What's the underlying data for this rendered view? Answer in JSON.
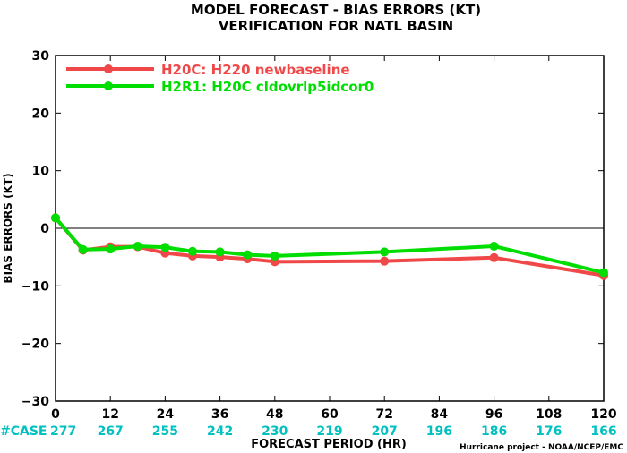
{
  "chart_data": {
    "type": "line",
    "title": "MODEL FORECAST - BIAS ERRORS (KT)",
    "subtitle": "VERIFICATION FOR NATL BASIN",
    "xlabel": "FORECAST PERIOD (HR)",
    "ylabel": "BIAS ERRORS (KT)",
    "xlim": [
      0,
      120
    ],
    "ylim": [
      -30,
      30
    ],
    "x_ticks": [
      0,
      12,
      24,
      36,
      48,
      60,
      72,
      84,
      96,
      108,
      120
    ],
    "y_ticks": [
      -30,
      -20,
      -10,
      0,
      10,
      20,
      30
    ],
    "y_tick_labels": [
      "−30",
      "−20",
      "−10",
      "0",
      "10",
      "20",
      "30"
    ],
    "zero_line": true,
    "legend_position": "top-left",
    "series": [
      {
        "name": "H20C: H220 newbaseline",
        "color": "#f04848",
        "points": [
          [
            0,
            1.8
          ],
          [
            6,
            -3.8
          ],
          [
            12,
            -3.2
          ],
          [
            18,
            -3.2
          ],
          [
            24,
            -4.3
          ],
          [
            30,
            -4.8
          ],
          [
            36,
            -5.0
          ],
          [
            42,
            -5.3
          ],
          [
            48,
            -5.8
          ],
          [
            72,
            -5.7
          ],
          [
            96,
            -5.1
          ],
          [
            120,
            -8.2
          ]
        ]
      },
      {
        "name": "H2R1: H20C cldovrlp5idcor0",
        "color": "#00dd00",
        "points": [
          [
            0,
            1.8
          ],
          [
            6,
            -3.7
          ],
          [
            12,
            -3.6
          ],
          [
            18,
            -3.1
          ],
          [
            24,
            -3.3
          ],
          [
            30,
            -4.0
          ],
          [
            36,
            -4.1
          ],
          [
            42,
            -4.6
          ],
          [
            48,
            -4.8
          ],
          [
            72,
            -4.1
          ],
          [
            96,
            -3.1
          ],
          [
            120,
            -7.7
          ]
        ]
      }
    ],
    "case_label": "#CASE",
    "case_label_color": "#00c0c0",
    "case_counts": [
      {
        "x": 0,
        "label": "277"
      },
      {
        "x": 12,
        "label": "267"
      },
      {
        "x": 24,
        "label": "255"
      },
      {
        "x": 36,
        "label": "242"
      },
      {
        "x": 48,
        "label": "230"
      },
      {
        "x": 60,
        "label": "219"
      },
      {
        "x": 72,
        "label": "207"
      },
      {
        "x": 84,
        "label": "196"
      },
      {
        "x": 96,
        "label": "186"
      },
      {
        "x": 108,
        "label": "176"
      },
      {
        "x": 120,
        "label": "166"
      }
    ],
    "credit": "Hurricane project - NOAA/NCEP/EMC"
  }
}
